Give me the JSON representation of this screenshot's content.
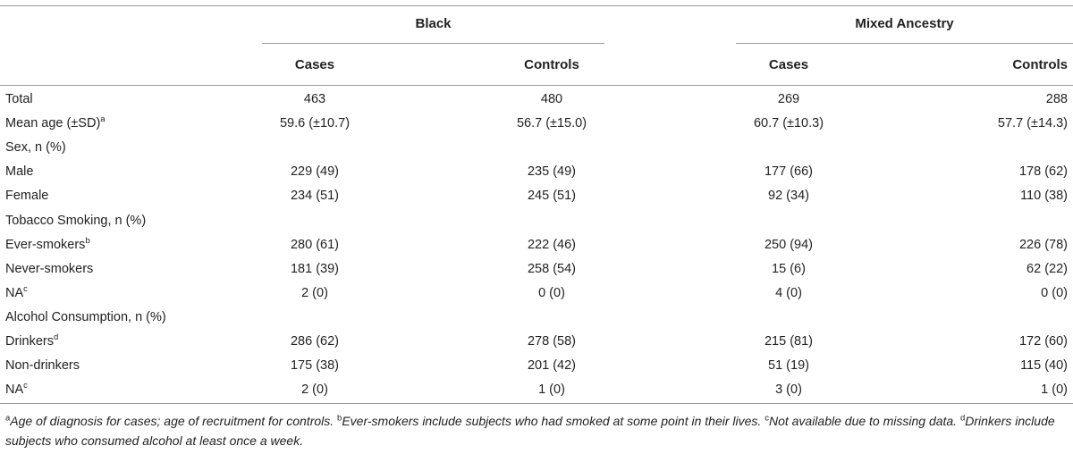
{
  "groups": [
    "Black",
    "Mixed Ancestry"
  ],
  "subheaders": [
    "Cases",
    "Controls",
    "Cases",
    "Controls"
  ],
  "rows": [
    {
      "label": "Total",
      "sup": "",
      "values": [
        "463",
        "480",
        "269",
        "288"
      ]
    },
    {
      "label": "Mean age (±SD)",
      "sup": "a",
      "values": [
        "59.6 (±10.7)",
        "56.7 (±15.0)",
        "60.7 (±10.3)",
        "57.7 (±14.3)"
      ]
    },
    {
      "label": "Sex, n (%)",
      "sup": "",
      "values": [
        "",
        "",
        "",
        ""
      ]
    },
    {
      "label": "Male",
      "sup": "",
      "values": [
        "229 (49)",
        "235 (49)",
        "177 (66)",
        "178 (62)"
      ]
    },
    {
      "label": "Female",
      "sup": "",
      "values": [
        "234 (51)",
        "245 (51)",
        "92 (34)",
        "110 (38)"
      ]
    },
    {
      "label": "Tobacco Smoking, n (%)",
      "sup": "",
      "values": [
        "",
        "",
        "",
        ""
      ]
    },
    {
      "label": "Ever-smokers",
      "sup": "b",
      "values": [
        "280 (61)",
        "222 (46)",
        "250 (94)",
        "226 (78)"
      ]
    },
    {
      "label": "Never-smokers",
      "sup": "",
      "values": [
        "181 (39)",
        "258 (54)",
        "15 (6)",
        "62 (22)"
      ]
    },
    {
      "label": "NA",
      "sup": "c",
      "values": [
        "2 (0)",
        "0 (0)",
        "4 (0)",
        "0 (0)"
      ]
    },
    {
      "label": "Alcohol Consumption, n (%)",
      "sup": "",
      "values": [
        "",
        "",
        "",
        ""
      ]
    },
    {
      "label": "Drinkers",
      "sup": "d",
      "values": [
        "286 (62)",
        "278 (58)",
        "215 (81)",
        "172 (60)"
      ]
    },
    {
      "label": "Non-drinkers",
      "sup": "",
      "values": [
        "175 (38)",
        "201 (42)",
        "51 (19)",
        "115 (40)"
      ]
    },
    {
      "label": "NA",
      "sup": "c",
      "values": [
        "2 (0)",
        "1 (0)",
        "3 (0)",
        "1 (0)"
      ]
    }
  ],
  "footnotes": [
    {
      "mark": "a",
      "text": "Age of diagnosis for cases; age of recruitment for controls. "
    },
    {
      "mark": "b",
      "text": "Ever-smokers include subjects who had smoked at some point in their lives. "
    },
    {
      "mark": "c",
      "text": "Not available due to missing data. "
    },
    {
      "mark": "d",
      "text": "Drinkers include subjects who consumed alcohol at least once a week."
    }
  ]
}
